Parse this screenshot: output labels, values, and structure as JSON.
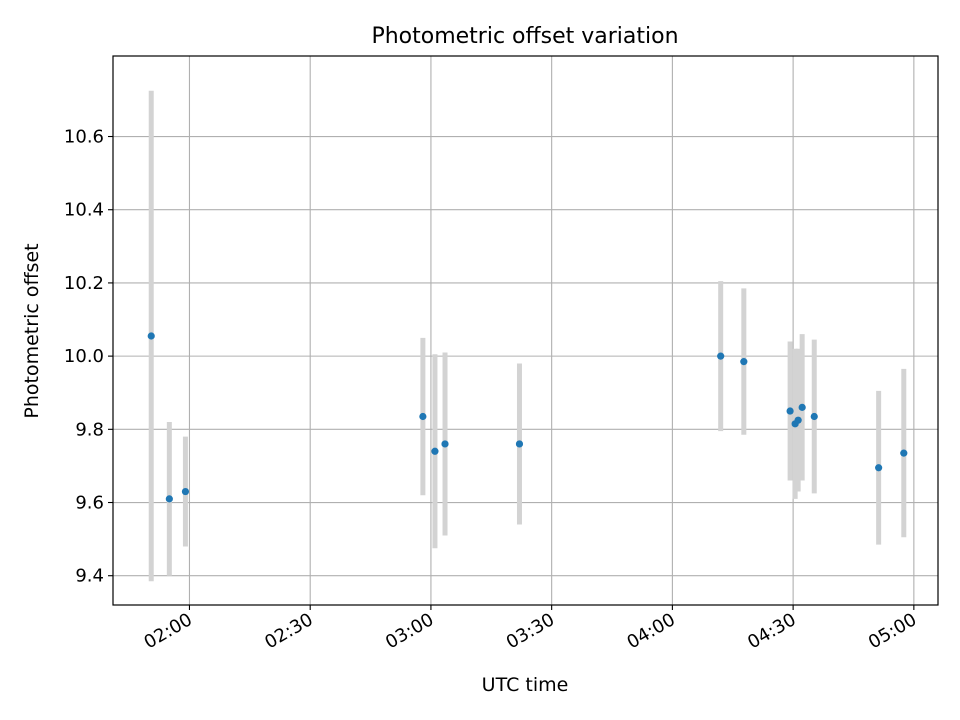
{
  "chart_data": {
    "type": "scatter",
    "title": "Photometric offset variation",
    "xlabel": "UTC time",
    "ylabel": "Photometric offset",
    "xlim": [
      "01:41",
      "05:06"
    ],
    "ylim": [
      9.32,
      10.82
    ],
    "grid": true,
    "x_ticks": [
      "02:00",
      "02:30",
      "03:00",
      "03:30",
      "04:00",
      "04:30",
      "05:00"
    ],
    "y_ticks": [
      "9.4",
      "9.6",
      "9.8",
      "10.0",
      "10.2",
      "10.4",
      "10.6"
    ],
    "marker_color": "#1f77b4",
    "errorbar_color": "#d3d3d3",
    "series": [
      {
        "points": [
          {
            "x": "01:50:30",
            "y": 10.055,
            "err": 0.67
          },
          {
            "x": "01:55:00",
            "y": 9.61,
            "err": 0.21
          },
          {
            "x": "01:59:00",
            "y": 9.63,
            "err": 0.15
          },
          {
            "x": "02:58:00",
            "y": 9.835,
            "err": 0.215
          },
          {
            "x": "03:01:00",
            "y": 9.74,
            "err": 0.265
          },
          {
            "x": "03:03:30",
            "y": 9.76,
            "err": 0.25
          },
          {
            "x": "03:22:00",
            "y": 9.76,
            "err": 0.22
          },
          {
            "x": "04:12:00",
            "y": 10.0,
            "err": 0.205
          },
          {
            "x": "04:17:45",
            "y": 9.985,
            "err": 0.2
          },
          {
            "x": "04:29:15",
            "y": 9.85,
            "err": 0.19
          },
          {
            "x": "04:30:30",
            "y": 9.815,
            "err": 0.205
          },
          {
            "x": "04:31:15",
            "y": 9.825,
            "err": 0.195
          },
          {
            "x": "04:32:15",
            "y": 9.86,
            "err": 0.2
          },
          {
            "x": "04:35:15",
            "y": 9.835,
            "err": 0.21
          },
          {
            "x": "04:51:15",
            "y": 9.695,
            "err": 0.21
          },
          {
            "x": "04:57:30",
            "y": 9.735,
            "err": 0.23
          }
        ]
      }
    ]
  }
}
